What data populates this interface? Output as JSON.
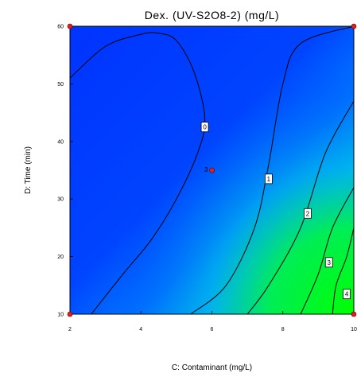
{
  "chart_data": {
    "type": "contour",
    "title": "Dex. (UV-S2O8-2) (mg/L)",
    "xlabel": "C: Contaminant (mg/L)",
    "ylabel": "D: Time (min)",
    "xlim": [
      2,
      10
    ],
    "ylim": [
      10,
      60
    ],
    "x_ticks": [
      "2",
      "4",
      "6",
      "8",
      "10"
    ],
    "y_ticks": [
      "10",
      "20",
      "30",
      "40",
      "50",
      "60"
    ],
    "colormap": [
      "#0033ff",
      "#00ff00"
    ],
    "contours": [
      {
        "level": "0",
        "label": "0",
        "points": [
          [
            2,
            51
          ],
          [
            3,
            56.5
          ],
          [
            4,
            58.6
          ],
          [
            4.5,
            58.8
          ],
          [
            5,
            57.5
          ],
          [
            5.5,
            52
          ],
          [
            5.8,
            44
          ],
          [
            5.6,
            38
          ],
          [
            5.0,
            30
          ],
          [
            4.3,
            23
          ],
          [
            3.5,
            17
          ],
          [
            2.6,
            10
          ]
        ]
      },
      {
        "level": "1",
        "label": "1",
        "points": [
          [
            10,
            60
          ],
          [
            8.5,
            57
          ],
          [
            8.0,
            50
          ],
          [
            7.6,
            36
          ],
          [
            7.2,
            25
          ],
          [
            6.4,
            15
          ],
          [
            5.4,
            10
          ]
        ]
      },
      {
        "level": "2",
        "label": "2",
        "points": [
          [
            10,
            47
          ],
          [
            9.2,
            38
          ],
          [
            8.5,
            25
          ],
          [
            7.6,
            15
          ],
          [
            7.0,
            10
          ]
        ]
      },
      {
        "level": "3",
        "label": "3",
        "points": [
          [
            10,
            32
          ],
          [
            9.4,
            25
          ],
          [
            9.0,
            17
          ],
          [
            8.5,
            10
          ]
        ]
      },
      {
        "level": "4",
        "label": "4",
        "points": [
          [
            10,
            25
          ],
          [
            9.8,
            20
          ],
          [
            9.5,
            15
          ],
          [
            9.4,
            10
          ]
        ]
      }
    ],
    "contour_labels": [
      {
        "text": "0",
        "x": 5.8,
        "y": 42.5
      },
      {
        "text": "1",
        "x": 7.6,
        "y": 33.5
      },
      {
        "text": "2",
        "x": 8.7,
        "y": 27.5
      },
      {
        "text": "3",
        "x": 9.3,
        "y": 19
      },
      {
        "text": "4",
        "x": 9.8,
        "y": 13.5
      }
    ],
    "design_points": [
      {
        "x": 6,
        "y": 35,
        "label": "3"
      },
      {
        "x": 2,
        "y": 60,
        "label": ""
      },
      {
        "x": 10,
        "y": 60,
        "label": ""
      },
      {
        "x": 2,
        "y": 10,
        "label": ""
      },
      {
        "x": 10,
        "y": 10,
        "label": ""
      }
    ]
  }
}
